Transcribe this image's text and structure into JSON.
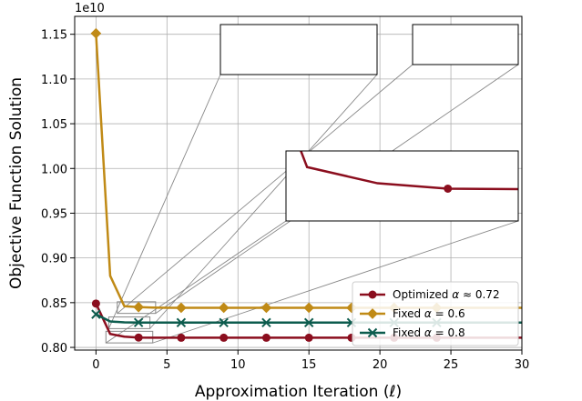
{
  "chart_data": {
    "type": "line",
    "xlabel": "Approximation Iteration (ℓ)",
    "ylabel": "Objective Function Solution",
    "offset_label": "1e10",
    "xlim": [
      -1.5,
      30
    ],
    "ylim": [
      0.797,
      1.17
    ],
    "xticks": [
      0,
      5,
      10,
      15,
      20,
      25,
      30
    ],
    "xtick_labels": [
      "0",
      "5",
      "10",
      "15",
      "20",
      "25",
      "30"
    ],
    "yticks": [
      0.8,
      0.85,
      0.9,
      0.95,
      1.0,
      1.05,
      1.1,
      1.15
    ],
    "ytick_labels": [
      "0.80",
      "0.85",
      "0.90",
      "0.95",
      "1.00",
      "1.05",
      "1.10",
      "1.15"
    ],
    "grid": true,
    "legend_position": "lower-right",
    "x": [
      0,
      1,
      2,
      3,
      4,
      5,
      6,
      7,
      8,
      9,
      10,
      11,
      12,
      13,
      14,
      15,
      16,
      17,
      18,
      19,
      20,
      21,
      22,
      23,
      24,
      25,
      26,
      27,
      28,
      29,
      30
    ],
    "series": [
      {
        "name": "Optimized α ≈ 0.72",
        "color": "#8b0e1e",
        "marker": "circle",
        "marker_every": 3,
        "values": [
          0.849,
          0.815,
          0.812,
          0.811,
          0.8109,
          0.8108,
          0.8108,
          0.8108,
          0.8108,
          0.8108,
          0.8108,
          0.8108,
          0.8108,
          0.8108,
          0.8108,
          0.8108,
          0.8108,
          0.8108,
          0.8108,
          0.8108,
          0.8108,
          0.8108,
          0.8108,
          0.8108,
          0.8108,
          0.8108,
          0.8108,
          0.8108,
          0.8108,
          0.8108,
          0.8108
        ]
      },
      {
        "name": "Fixed α = 0.6",
        "color": "#c08a16",
        "marker": "diamond",
        "marker_every": 3,
        "values": [
          1.151,
          0.88,
          0.846,
          0.845,
          0.8445,
          0.8443,
          0.8443,
          0.8443,
          0.8443,
          0.8443,
          0.8443,
          0.8443,
          0.8443,
          0.8443,
          0.8443,
          0.8443,
          0.8443,
          0.8443,
          0.8443,
          0.8443,
          0.8443,
          0.8443,
          0.8443,
          0.8443,
          0.8443,
          0.8443,
          0.8443,
          0.8443,
          0.8443,
          0.8443,
          0.8443
        ]
      },
      {
        "name": "Fixed α = 0.8",
        "color": "#0d5c4e",
        "marker": "x",
        "marker_every": 3,
        "values": [
          0.837,
          0.829,
          0.828,
          0.8278,
          0.8277,
          0.8277,
          0.8277,
          0.8277,
          0.8277,
          0.8277,
          0.8277,
          0.8277,
          0.8277,
          0.8277,
          0.8277,
          0.8277,
          0.8277,
          0.8277,
          0.8277,
          0.8277,
          0.8277,
          0.8277,
          0.8277,
          0.8277,
          0.8277,
          0.8277,
          0.8277,
          0.8277,
          0.8277,
          0.8277,
          0.8277
        ]
      }
    ]
  },
  "legend": {
    "items": [
      {
        "prefix": "Optimized ",
        "symbol": "α",
        "suffix": " ≈ 0.72"
      },
      {
        "prefix": "Fixed ",
        "symbol": "α",
        "suffix": " = 0.6"
      },
      {
        "prefix": "Fixed ",
        "symbol": "α",
        "suffix": " = 0.8"
      }
    ]
  }
}
